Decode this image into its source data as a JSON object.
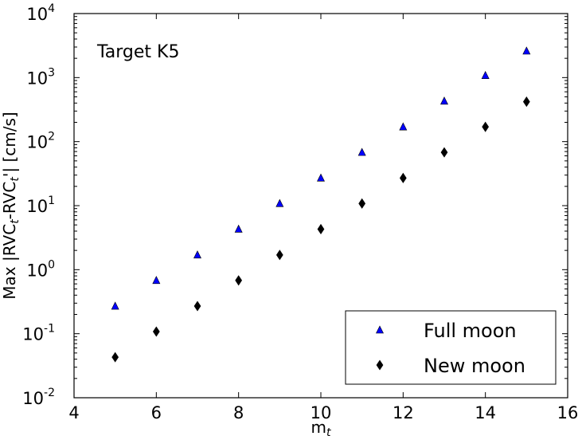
{
  "chart_data": {
    "type": "scatter",
    "xlabel": {
      "main": "m",
      "sub": "t"
    },
    "ylabel": {
      "p1": "Max |RVC",
      "s1": "t",
      "p2": "-RVC",
      "s2": "t",
      "p3": "'| [cm/s]"
    },
    "annotation": "Target K5",
    "xlim": [
      4,
      16
    ],
    "ylim": [
      0.01,
      10000
    ],
    "yscale": "log",
    "xticks": [
      {
        "value": 4,
        "label": "4"
      },
      {
        "value": 6,
        "label": "6"
      },
      {
        "value": 8,
        "label": "8"
      },
      {
        "value": 10,
        "label": "10"
      },
      {
        "value": 12,
        "label": "12"
      },
      {
        "value": 14,
        "label": "14"
      },
      {
        "value": 16,
        "label": "16"
      }
    ],
    "yticks": [
      {
        "value": 0.01,
        "base": "10",
        "exp": "-2"
      },
      {
        "value": 0.1,
        "base": "10",
        "exp": "-1"
      },
      {
        "value": 1,
        "base": "10",
        "exp": "0"
      },
      {
        "value": 10,
        "base": "10",
        "exp": "1"
      },
      {
        "value": 100,
        "base": "10",
        "exp": "2"
      },
      {
        "value": 1000,
        "base": "10",
        "exp": "3"
      },
      {
        "value": 10000,
        "base": "10",
        "exp": "4"
      }
    ],
    "legend_position": "lower-right",
    "series": [
      {
        "name": "Full moon",
        "marker": "triangle",
        "color": "#0000ff",
        "x": [
          5,
          6,
          7,
          8,
          9,
          10,
          11,
          12,
          13,
          14,
          15
        ],
        "y": [
          0.27,
          0.68,
          1.7,
          4.3,
          10.8,
          27,
          68,
          170,
          430,
          1080,
          2600
        ]
      },
      {
        "name": "New moon",
        "marker": "diamond",
        "color": "#000000",
        "x": [
          5,
          6,
          7,
          8,
          9,
          10,
          11,
          12,
          13,
          14,
          15
        ],
        "y": [
          0.043,
          0.108,
          0.27,
          0.68,
          1.7,
          4.3,
          10.8,
          27,
          68,
          170,
          420
        ]
      }
    ]
  }
}
